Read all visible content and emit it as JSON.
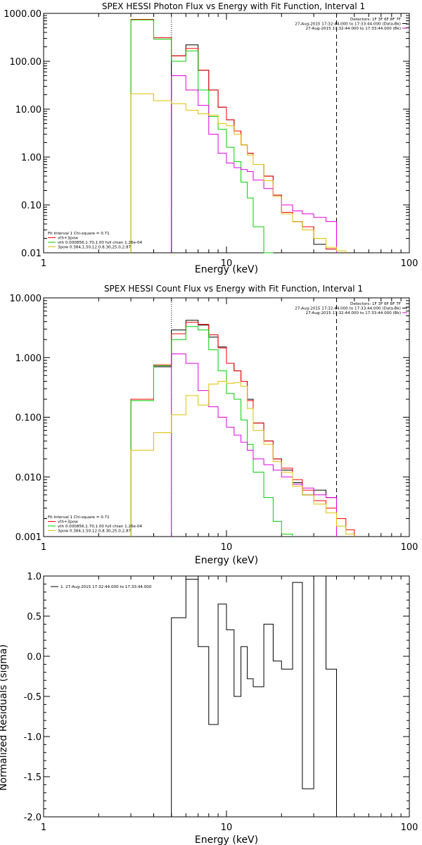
{
  "colors": {
    "black": "#000000",
    "red": "#ff0000",
    "green": "#00d000",
    "magenta": "#e000e0",
    "yellow": "#e0c000",
    "blue": "#0000ff"
  },
  "chart_data": [
    {
      "type": "line",
      "title": "SPEX HESSI Photon Flux vs Energy with Fit Function, Interval 1",
      "xlabel": "Energy (keV)",
      "ylabel": "",
      "xscale": "log",
      "yscale": "log",
      "xlim": [
        1,
        100
      ],
      "ylim": [
        0.01,
        1000
      ],
      "xticks": [
        1,
        10,
        100
      ],
      "xtick_labels": [
        "1",
        "10",
        "100"
      ],
      "yticks": [
        0.01,
        0.1,
        1,
        10,
        100,
        1000
      ],
      "ytick_labels": [
        "0.01",
        "0.10",
        "1.00",
        "10.00",
        "100.00",
        "1000.00"
      ],
      "fit_range_start": 5.0,
      "fit_range_end": 40.0,
      "info": [
        "Detectors: 1F 3F 6F 8F 7F",
        "27-Aug-2015 17:32:44.000 to 17:33:44.000 (Data-Bk)",
        "27-Aug-2015 17:32:44.000 to 17:33:44.000 (Bk)"
      ],
      "legend_position": "bottom-left",
      "legend": [
        "Fit Interval 1   Chi-square = 0.71",
        "vth+3pow",
        "vth 0.000856,1.70,1.00  full chian 1.26e-04",
        "3pow 0.384,1.50,12.0,8.30,25.0,2.87"
      ],
      "edges": [
        3,
        4,
        5,
        6,
        7,
        8,
        9,
        10,
        11,
        12,
        13,
        14,
        16,
        18,
        20,
        23,
        26,
        30,
        35,
        40,
        45
      ],
      "series": [
        {
          "color": "black",
          "values": [
            null,
            null,
            130,
            220,
            65,
            25,
            11,
            6,
            3.5,
            1.8,
            1.2,
            0.7,
            0.4,
            0.16,
            0.07,
            0.045,
            0.035,
            0.015,
            0.012,
            null
          ]
        },
        {
          "color": "red",
          "values": [
            750,
            310,
            130,
            185,
            65,
            25,
            11,
            6,
            3.5,
            1.8,
            1.2,
            0.7,
            0.4,
            0.16,
            0.07,
            0.045,
            0.035,
            0.02,
            0.012,
            null
          ]
        },
        {
          "color": "green",
          "values": [
            730,
            290,
            100,
            165,
            25,
            7,
            3.8,
            1.6,
            0.8,
            0.3,
            0.14,
            0.035,
            0.01,
            null,
            null,
            null,
            null,
            null,
            null,
            null
          ]
        },
        {
          "color": "magenta",
          "values": [
            null,
            null,
            50,
            25,
            12,
            3,
            1.2,
            0.75,
            0.6,
            0.55,
            0.5,
            0.33,
            0.22,
            0.15,
            0.1,
            0.075,
            0.065,
            0.055,
            0.045,
            null
          ]
        },
        {
          "color": "yellow",
          "values": [
            21,
            15,
            13,
            9.5,
            8,
            7.5,
            5,
            4.5,
            3,
            1.8,
            1.1,
            0.7,
            0.32,
            0.15,
            0.065,
            0.045,
            0.03,
            0.02,
            0.013,
            0.011
          ]
        }
      ]
    },
    {
      "type": "line",
      "title": "SPEX HESSI Count Flux vs Energy with Fit Function, Interval 1",
      "xlabel": "Energy (keV)",
      "ylabel": "",
      "xscale": "log",
      "yscale": "log",
      "xlim": [
        1,
        100
      ],
      "ylim": [
        0.001,
        10
      ],
      "xticks": [
        1,
        10,
        100
      ],
      "xtick_labels": [
        "1",
        "10",
        "100"
      ],
      "yticks": [
        0.001,
        0.01,
        0.1,
        1,
        10
      ],
      "ytick_labels": [
        "0.001",
        "0.010",
        "0.100",
        "1.000",
        "10.000"
      ],
      "fit_range_start": 5.0,
      "fit_range_end": 40.0,
      "info": [
        "Detectors: 1F 3F 6F 8F 7F",
        "27-Aug-2015 17:32:44.000 to 17:33:44.000 (Data-Bk)",
        "27-Aug-2015 17:32:44.000 to 17:33:44.000 (Bk)"
      ],
      "legend_position": "bottom-left",
      "legend": [
        "Fit Interval 1   Chi-square = 0.71",
        "vth+3pow",
        "vth 0.000856,1.70,1.00  full chian 1.26e-04",
        "3pow 0.384,1.50,12.0,8.30,25.0,2.87"
      ],
      "edges": [
        3,
        4,
        5,
        6,
        7,
        8,
        9,
        10,
        11,
        12,
        13,
        14,
        16,
        18,
        20,
        23,
        26,
        30,
        35,
        40,
        45,
        50
      ],
      "series": [
        {
          "color": "black",
          "values": [
            0.2,
            0.7,
            2.9,
            4.2,
            3.5,
            2.2,
            1.5,
            0.8,
            0.6,
            0.4,
            0.2,
            0.08,
            0.04,
            0.02,
            0.013,
            0.008,
            0.005,
            0.006,
            0.0045,
            null,
            null
          ]
        },
        {
          "color": "red",
          "values": [
            0.2,
            0.75,
            2.5,
            3.9,
            3.6,
            2.4,
            1.45,
            0.8,
            0.6,
            0.4,
            0.19,
            0.08,
            0.04,
            0.02,
            0.014,
            0.009,
            0.006,
            0.004,
            0.003,
            0.002,
            0.0013
          ]
        },
        {
          "color": "green",
          "values": [
            0.19,
            0.73,
            2.0,
            3.3,
            2.9,
            1.35,
            0.6,
            0.25,
            0.2,
            0.09,
            0.035,
            0.012,
            0.0045,
            0.0018,
            0.0011,
            null,
            null,
            null,
            null,
            null,
            null
          ]
        },
        {
          "color": "magenta",
          "values": [
            null,
            null,
            1.15,
            0.8,
            0.28,
            0.15,
            0.1,
            0.068,
            0.05,
            0.038,
            0.028,
            0.02,
            0.016,
            0.013,
            0.01,
            0.0075,
            0.0065,
            0.005,
            0.0045,
            null,
            null
          ]
        },
        {
          "color": "yellow",
          "values": [
            0.028,
            0.055,
            0.11,
            0.23,
            0.16,
            0.36,
            0.4,
            0.37,
            0.38,
            0.33,
            0.14,
            0.06,
            0.035,
            0.018,
            0.012,
            0.007,
            0.005,
            0.0035,
            0.0025,
            0.0015,
            0.0011
          ]
        }
      ]
    },
    {
      "type": "line",
      "title": "",
      "xlabel": "Energy (keV)",
      "ylabel": "Normalized Residuals (sigma)",
      "xscale": "log",
      "yscale": "linear",
      "xlim": [
        1,
        100
      ],
      "ylim": [
        -2.0,
        1.0
      ],
      "xticks": [
        1,
        10,
        100
      ],
      "xtick_labels": [
        "1",
        "10",
        "100"
      ],
      "yticks": [
        -2.0,
        -1.5,
        -1.0,
        -0.5,
        0.0,
        0.5,
        1.0
      ],
      "ytick_labels": [
        "-2.0",
        "-1.5",
        "-1.0",
        "-0.5",
        "0.0",
        "0.5",
        "1.0"
      ],
      "legend_position": "top-left",
      "legend": [
        "1. 27-Aug-2015 17:32:44.000 to 17:33:44.000"
      ],
      "edges": [
        5,
        6,
        7,
        8,
        9,
        10,
        11,
        12,
        13,
        14,
        16,
        18,
        20,
        23,
        26,
        30,
        35,
        40
      ],
      "series": [
        {
          "color": "black",
          "values": [
            0.48,
            0.96,
            0.12,
            -0.85,
            0.65,
            0.33,
            -0.5,
            0.12,
            -0.28,
            -0.38,
            0.4,
            -0.06,
            -0.16,
            0.92,
            -1.65,
            1.05,
            -0.16
          ]
        }
      ]
    }
  ]
}
